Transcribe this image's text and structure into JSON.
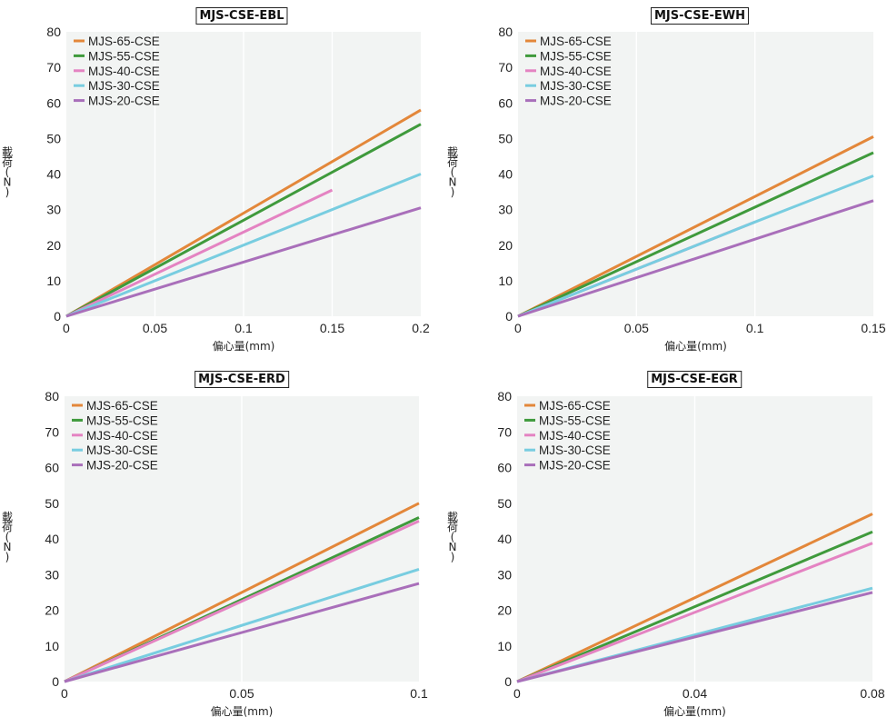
{
  "colors": {
    "MJS-65-CSE": "#e3873a",
    "MJS-55-CSE": "#3f9a3c",
    "MJS-40-CSE": "#e483c2",
    "MJS-30-CSE": "#78cde0",
    "MJS-20-CSE": "#a96fba"
  },
  "chart_data": [
    {
      "type": "line",
      "title": "MJS-CSE-EBL",
      "xlabel": "偏心量(mm)",
      "ylabel": "載荷(N)",
      "ylabel_chars": [
        "載",
        "荷",
        "(",
        "N",
        ")"
      ],
      "xlim": [
        0,
        0.2
      ],
      "ylim": [
        0,
        80
      ],
      "xticks": [
        "0",
        "0.05",
        "0.1",
        "0.15",
        "0.2"
      ],
      "yticks": [
        "0",
        "10",
        "20",
        "30",
        "40",
        "50",
        "60",
        "70",
        "80"
      ],
      "legend_position": "top-left",
      "series": [
        {
          "name": "MJS-65-CSE",
          "x": [
            0,
            0.2
          ],
          "y": [
            0,
            58
          ]
        },
        {
          "name": "MJS-55-CSE",
          "x": [
            0,
            0.2
          ],
          "y": [
            0,
            54
          ]
        },
        {
          "name": "MJS-40-CSE",
          "x": [
            0,
            0.15
          ],
          "y": [
            0,
            35.5
          ]
        },
        {
          "name": "MJS-30-CSE",
          "x": [
            0,
            0.2
          ],
          "y": [
            0,
            40
          ]
        },
        {
          "name": "MJS-20-CSE",
          "x": [
            0,
            0.2
          ],
          "y": [
            0,
            30.5
          ]
        }
      ]
    },
    {
      "type": "line",
      "title": "MJS-CSE-EWH",
      "xlabel": "偏心量(mm)",
      "ylabel": "載荷(N)",
      "ylabel_chars": [
        "載",
        "荷",
        "(",
        "N",
        ")"
      ],
      "xlim": [
        0,
        0.15
      ],
      "ylim": [
        0,
        80
      ],
      "xticks": [
        "0",
        "0.05",
        "0.1",
        "0.15"
      ],
      "yticks": [
        "0",
        "10",
        "20",
        "30",
        "40",
        "50",
        "60",
        "70",
        "80"
      ],
      "legend_position": "top-left",
      "series": [
        {
          "name": "MJS-65-CSE",
          "x": [
            0,
            0.15
          ],
          "y": [
            0,
            50.5
          ]
        },
        {
          "name": "MJS-55-CSE",
          "x": [
            0,
            0.15
          ],
          "y": [
            0,
            46
          ]
        },
        {
          "name": "MJS-40-CSE",
          "x": [
            0,
            0.1
          ],
          "y": [
            0,
            26.5
          ]
        },
        {
          "name": "MJS-30-CSE",
          "x": [
            0,
            0.1,
            0.15
          ],
          "y": [
            0,
            26.5,
            39.5
          ]
        },
        {
          "name": "MJS-20-CSE",
          "x": [
            0,
            0.15
          ],
          "y": [
            0,
            32.5
          ]
        }
      ]
    },
    {
      "type": "line",
      "title": "MJS-CSE-ERD",
      "xlabel": "偏心量(mm)",
      "ylabel": "載荷(N)",
      "ylabel_chars": [
        "載",
        "荷",
        "(",
        "N",
        ")"
      ],
      "xlim": [
        0,
        0.1
      ],
      "ylim": [
        0,
        80
      ],
      "xticks": [
        "0",
        "0.05",
        "0.1"
      ],
      "yticks": [
        "0",
        "10",
        "20",
        "30",
        "40",
        "50",
        "60",
        "70",
        "80"
      ],
      "legend_position": "top-left",
      "series": [
        {
          "name": "MJS-65-CSE",
          "x": [
            0,
            0.1
          ],
          "y": [
            0,
            50
          ]
        },
        {
          "name": "MJS-55-CSE",
          "x": [
            0,
            0.1
          ],
          "y": [
            0,
            46
          ]
        },
        {
          "name": "MJS-40-CSE",
          "x": [
            0,
            0.1
          ],
          "y": [
            0,
            45
          ]
        },
        {
          "name": "MJS-30-CSE",
          "x": [
            0,
            0.1
          ],
          "y": [
            0,
            31.5
          ]
        },
        {
          "name": "MJS-20-CSE",
          "x": [
            0,
            0.1
          ],
          "y": [
            0,
            27.5
          ]
        }
      ]
    },
    {
      "type": "line",
      "title": "MJS-CSE-EGR",
      "xlabel": "偏心量(mm)",
      "ylabel": "載荷(N)",
      "ylabel_chars": [
        "載",
        "荷",
        "(",
        "N",
        ")"
      ],
      "xlim": [
        0,
        0.08
      ],
      "ylim": [
        0,
        80
      ],
      "xticks": [
        "0",
        "0.04",
        "0.08"
      ],
      "yticks": [
        "0",
        "10",
        "20",
        "30",
        "40",
        "50",
        "60",
        "70",
        "80"
      ],
      "legend_position": "top-left",
      "series": [
        {
          "name": "MJS-65-CSE",
          "x": [
            0,
            0.08
          ],
          "y": [
            0,
            47
          ]
        },
        {
          "name": "MJS-55-CSE",
          "x": [
            0,
            0.08
          ],
          "y": [
            0,
            42
          ]
        },
        {
          "name": "MJS-40-CSE",
          "x": [
            0,
            0.08
          ],
          "y": [
            0,
            38.8
          ]
        },
        {
          "name": "MJS-30-CSE",
          "x": [
            0,
            0.08
          ],
          "y": [
            0,
            26.2
          ]
        },
        {
          "name": "MJS-20-CSE",
          "x": [
            0,
            0.08
          ],
          "y": [
            0,
            25
          ]
        }
      ]
    }
  ]
}
